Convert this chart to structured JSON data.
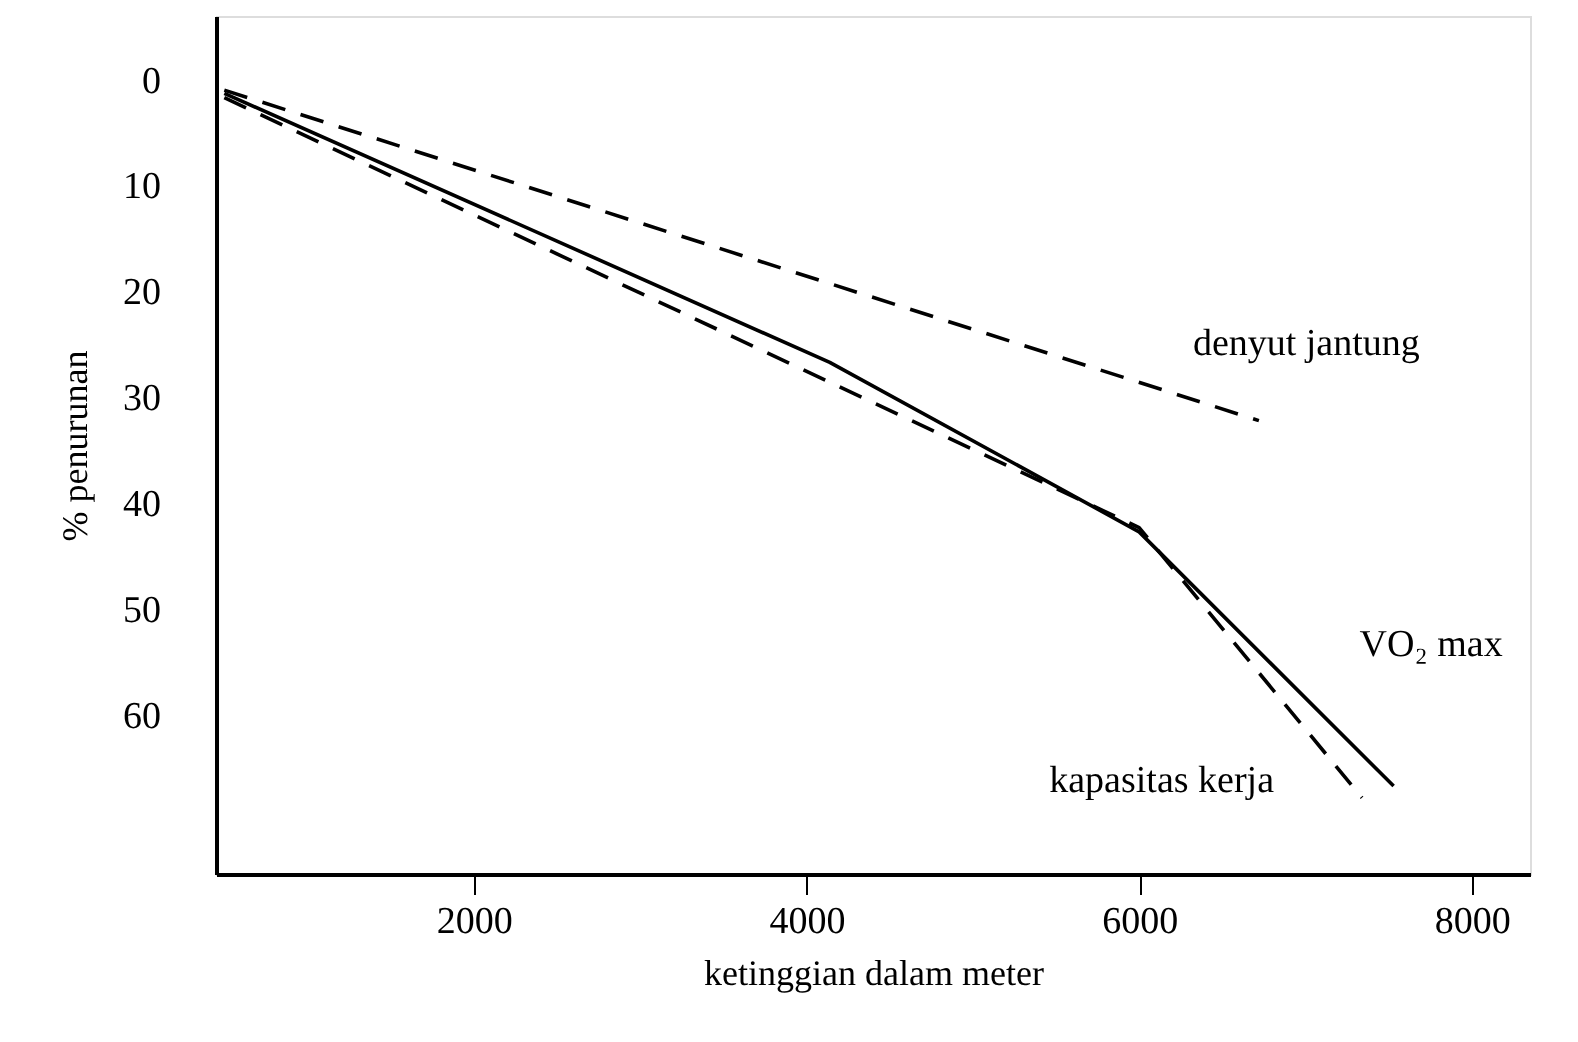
{
  "chart_data": {
    "type": "line",
    "xlabel": "ketinggian dalam meter",
    "ylabel": "% penurunan",
    "xlim": [
      450,
      8350
    ],
    "xticks": [
      2000,
      4000,
      6000,
      8000
    ],
    "ylim": [
      75,
      -6
    ],
    "yticks": [
      0,
      10,
      20,
      30,
      40,
      50,
      60
    ],
    "grid": false,
    "marker": "none",
    "series": [
      {
        "name": "denyut jantung",
        "color": "#000000",
        "line_style": "dashed",
        "x": [
          500,
          6720
        ],
        "values": [
          1.0,
          32.2
        ]
      },
      {
        "name": "VO₂ max",
        "color": "#000000",
        "line_style": "solid",
        "x": [
          500,
          4140,
          6000,
          7530
        ],
        "values": [
          1.3,
          26.7,
          42.7,
          66.7
        ]
      },
      {
        "name": "kapasitas kerja",
        "color": "#000000",
        "line_style": "dashed",
        "x": [
          500,
          6000,
          7340
        ],
        "values": [
          1.7,
          42.3,
          67.8
        ]
      }
    ]
  }
}
